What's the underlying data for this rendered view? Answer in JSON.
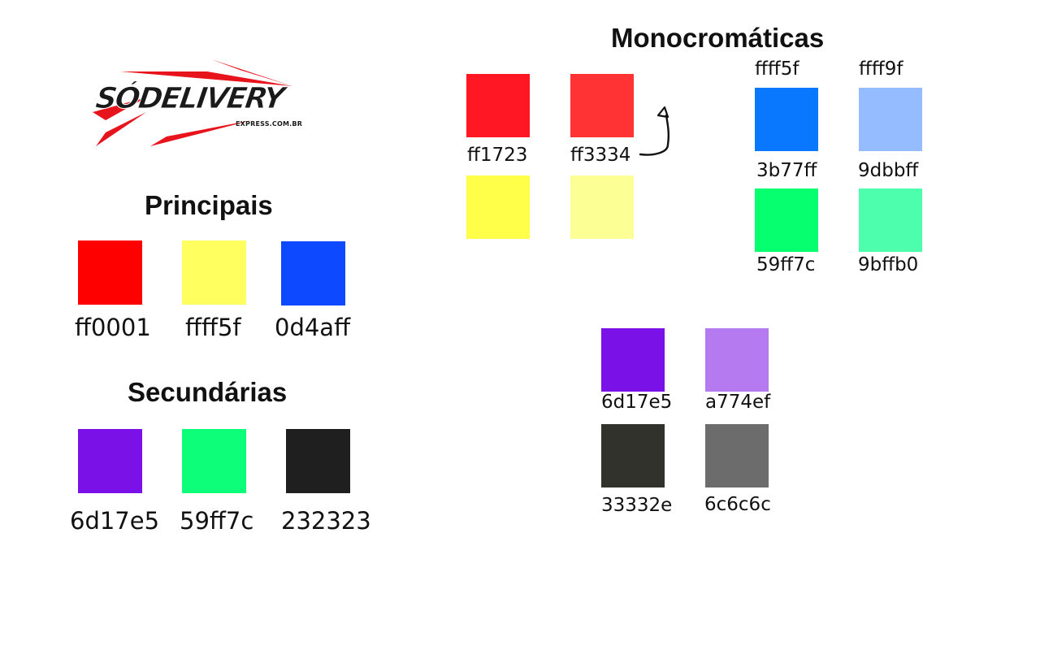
{
  "logo": {
    "main": "SÓDELIVERY",
    "sub": "EXPRESS.COM.BR"
  },
  "principais": {
    "title": "Principais",
    "swatches": [
      {
        "hex": "ff0001",
        "color": "#ff0001"
      },
      {
        "hex": "ffff5f",
        "color": "#ffff5f"
      },
      {
        "hex": "0d4aff",
        "color": "#0d4aff"
      }
    ]
  },
  "secundarias": {
    "title": "Secundárias",
    "swatches": [
      {
        "hex": "6d17e5",
        "color": "#7a12e8"
      },
      {
        "hex": "59ff7c",
        "color": "#0dff7a"
      },
      {
        "hex": "232323",
        "color": "#1f1f1f"
      }
    ]
  },
  "monocromaticas": {
    "title": "Monocromáticas",
    "red_swatches": [
      {
        "hex": "ff1723",
        "color": "#ff1723"
      },
      {
        "hex": "ff3334",
        "color": "#ff3334"
      }
    ],
    "yellow_swatches": [
      {
        "color": "#ffff4a"
      },
      {
        "color": "#fcff94"
      }
    ],
    "yellow_labels": [
      "ffff5f",
      "ffff9f"
    ],
    "blue_green_swatches": [
      {
        "hex": "3b77ff",
        "color": "#0a77ff"
      },
      {
        "hex": "9dbbff",
        "color": "#94bcff"
      },
      {
        "hex": "59ff7c",
        "color": "#05ff6e"
      },
      {
        "hex": "9bffb0",
        "color": "#4dffac"
      }
    ],
    "purple_gray_swatches": [
      {
        "hex": "6d17e5",
        "color": "#7a12e8"
      },
      {
        "hex": "a774ef",
        "color": "#b57aef"
      },
      {
        "hex": "33332e",
        "color": "#32322d"
      },
      {
        "hex": "6c6c6c",
        "color": "#6c6c6c"
      }
    ]
  },
  "colors": {
    "logo_red": "#e8141c",
    "text": "#111111"
  }
}
